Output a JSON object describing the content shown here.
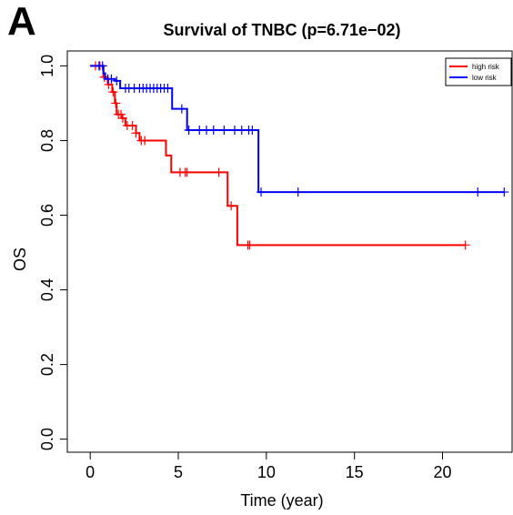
{
  "panel_label": "A",
  "chart_data": {
    "type": "line",
    "title": "Survival of TNBC (p=6.71e−02)",
    "xlabel": "Time (year)",
    "ylabel": "OS",
    "xlim": [
      -1.3,
      24.0
    ],
    "ylim": [
      -0.035,
      1.04
    ],
    "xticks": [
      "0",
      "5",
      "10",
      "15",
      "20"
    ],
    "xtick_values": [
      0,
      5,
      10,
      15,
      20
    ],
    "yticks": [
      "0.0",
      "0.2",
      "0.4",
      "0.6",
      "0.8",
      "1.0"
    ],
    "ytick_values": [
      0.0,
      0.2,
      0.4,
      0.6,
      0.8,
      1.0
    ],
    "grid": false,
    "legend_position": "top-right",
    "series": [
      {
        "name": "high risk",
        "color": "#ff0000",
        "steps": [
          [
            0,
            1.0
          ],
          [
            0.75,
            0.97
          ],
          [
            1.0,
            0.95
          ],
          [
            1.25,
            0.93
          ],
          [
            1.4,
            0.9
          ],
          [
            1.5,
            0.87
          ],
          [
            1.8,
            0.86
          ],
          [
            2.0,
            0.84
          ],
          [
            2.6,
            0.82
          ],
          [
            2.8,
            0.8
          ],
          [
            4.3,
            0.76
          ],
          [
            4.6,
            0.715
          ],
          [
            7.8,
            0.625
          ],
          [
            8.35,
            0.52
          ],
          [
            21.3,
            0.52
          ]
        ],
        "censor_x": [
          0.3,
          0.55,
          0.8,
          1.05,
          1.3,
          1.45,
          1.6,
          1.75,
          1.85,
          2.1,
          2.4,
          2.6,
          2.9,
          3.1,
          5.1,
          5.4,
          5.5,
          7.3,
          8.0,
          8.95,
          9.05,
          21.3
        ]
      },
      {
        "name": "low risk",
        "color": "#0000ff",
        "steps": [
          [
            0,
            1.0
          ],
          [
            0.75,
            0.98
          ],
          [
            0.85,
            0.965
          ],
          [
            1.4,
            0.96
          ],
          [
            1.7,
            0.94
          ],
          [
            4.65,
            0.885
          ],
          [
            5.5,
            0.828
          ],
          [
            9.55,
            0.662
          ],
          [
            23.5,
            0.662
          ]
        ],
        "censor_x": [
          0.5,
          0.7,
          1.0,
          1.2,
          1.5,
          2.0,
          2.2,
          2.5,
          2.8,
          3.0,
          3.2,
          3.4,
          3.6,
          3.8,
          4.0,
          4.2,
          4.4,
          5.2,
          5.6,
          6.2,
          6.6,
          7.0,
          7.6,
          8.2,
          8.6,
          9.0,
          9.2,
          9.7,
          11.8,
          22.0,
          23.5
        ]
      }
    ]
  }
}
